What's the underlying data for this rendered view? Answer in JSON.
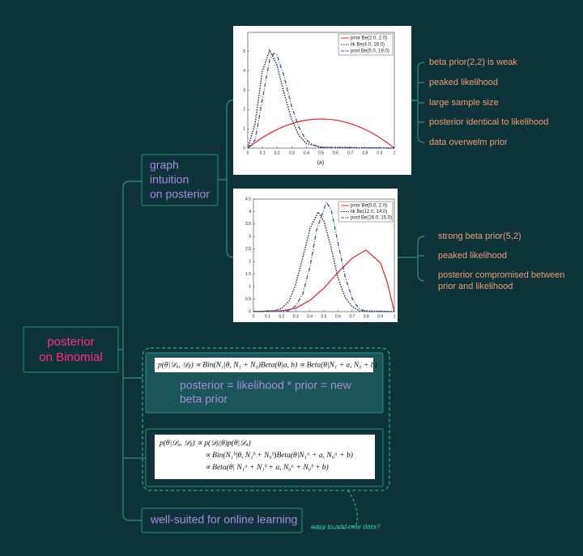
{
  "root": [
    "posterior",
    "on Binomial"
  ],
  "graph_node": [
    "graph",
    "intuition",
    "on posterior"
  ],
  "chart_a": {
    "legend": [
      "prior Be(2.0, 2.0)",
      "lik Be(4.0, 18.0)",
      "post Be(5.0, 19.0)"
    ],
    "xticks": [
      0,
      0.1,
      0.2,
      0.3,
      0.4,
      0.5,
      0.6,
      0.7,
      0.8,
      0.9,
      1
    ],
    "yticks": [
      0,
      1,
      2,
      3,
      4,
      5
    ],
    "caption": "(a)"
  },
  "chart_a_notes": [
    "beta prior(2,2) is weak",
    "peaked likelihood",
    "large sample size",
    "posterior identical to likelihood",
    "data overwelm prior"
  ],
  "chart_b": {
    "legend": [
      "prior Be(5.0, 2.0)",
      "lik Be(12.0, 14.0)",
      "post Be(16.0, 15.0)"
    ],
    "xticks": [
      0,
      0.1,
      0.2,
      0.3,
      0.4,
      0.5,
      0.6,
      0.7,
      0.8,
      0.9,
      1
    ],
    "yticks": [
      0,
      0.5,
      1,
      1.5,
      2,
      2.5,
      3,
      3.5,
      4,
      4.5
    ]
  },
  "chart_b_notes": [
    "strong beta prior(5,2)",
    "peaked likelihood",
    "posterior compromised between",
    "prior and likelihood"
  ],
  "formula_1": "p(θ|𝒟ₐ, 𝒟ᵦ)   ∝   Bin(N₁|θ, N₁ + N₀)Beta(θ|a, b) ∝ Beta(θ|N₁ + a, N₀ + b)",
  "formula_1_note": [
    "posterior = likelihood * prior = new",
    "beta prior"
  ],
  "formula_2": [
    "p(θ|𝒟ₐ, 𝒟ᵦ)   ∝   p(𝒟ᵦ|θ)p(θ|𝒟ₐ)",
    "∝   Bin(N₁ᵇ|θ, N₁ᵇ + N₀ᵇ)Beta(θ|N₁ᵃ + a, N₀ᵃ + b)",
    "∝   Beta(θ| N₁ᵃ + N₁ᵇ + a, N₀ᵃ + N₀ᵇ + b)"
  ],
  "online_node": "well-suited for online learning",
  "online_note": "easy to add new data?"
}
